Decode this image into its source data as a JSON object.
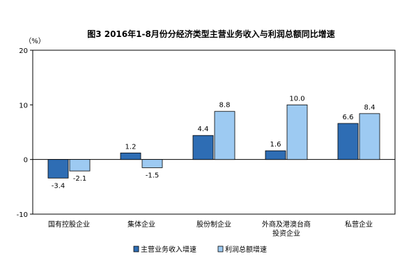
{
  "chart_data": {
    "type": "bar",
    "title": "图3 2016年1-8月份分经济类型主营业务收入与利润总额同比增速",
    "unit_label": "（%）",
    "categories": [
      "国有控股企业",
      "集体企业",
      "股份制企业",
      "外商及港澳台商|投资企业",
      "私营企业"
    ],
    "series": [
      {
        "name": "主营业务收入增速",
        "values": [
          -3.4,
          1.2,
          4.4,
          1.6,
          6.6
        ],
        "color": "#2e6db4"
      },
      {
        "name": "利润总额增速",
        "values": [
          -2.1,
          -1.5,
          8.8,
          10.0,
          8.4
        ],
        "color": "#9dcaf2"
      }
    ],
    "data_labels": [
      [
        "-3.4",
        "1.2",
        "4.4",
        "1.6",
        "6.6"
      ],
      [
        "-2.1",
        "-1.5",
        "8.8",
        "10.0",
        "8.4"
      ]
    ],
    "y_ticks": [
      20,
      10,
      0,
      -10
    ],
    "ylim": [
      -10,
      20
    ],
    "grid": false,
    "legend_position": "bottom"
  }
}
